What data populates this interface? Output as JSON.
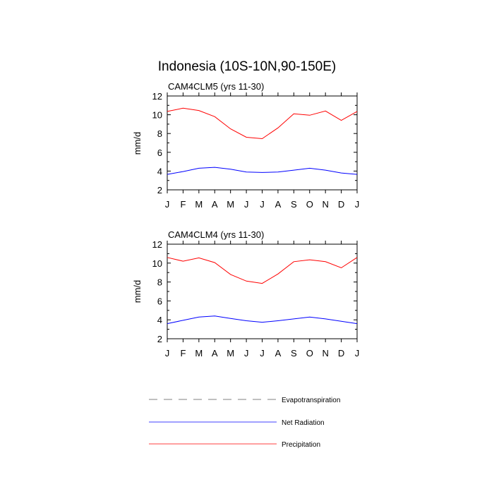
{
  "title": "Indonesia (10S-10N,90-150E)",
  "chart_data": [
    {
      "type": "line",
      "subtitle": "CAM4CLM5 (yrs 11-30)",
      "ylabel": "mm/d",
      "ylim": [
        2,
        12
      ],
      "yticks": [
        "2",
        "4",
        "6",
        "8",
        "10",
        "12"
      ],
      "categories": [
        "J",
        "F",
        "M",
        "A",
        "M",
        "J",
        "J",
        "A",
        "S",
        "O",
        "N",
        "D",
        "J"
      ],
      "series": [
        {
          "name": "Precipitation",
          "color": "#ff0000",
          "values": [
            10.35,
            10.7,
            10.45,
            9.8,
            8.5,
            7.6,
            7.45,
            8.6,
            10.1,
            9.95,
            10.4,
            9.4,
            10.35
          ]
        },
        {
          "name": "Net Radiation",
          "color": "#0000ff",
          "values": [
            3.65,
            3.95,
            4.3,
            4.4,
            4.2,
            3.9,
            3.85,
            3.9,
            4.1,
            4.3,
            4.1,
            3.8,
            3.65
          ]
        }
      ]
    },
    {
      "type": "line",
      "subtitle": "CAM4CLM4 (yrs 11-30)",
      "ylabel": "mm/d",
      "ylim": [
        2,
        12
      ],
      "yticks": [
        "2",
        "4",
        "6",
        "8",
        "10",
        "12"
      ],
      "categories": [
        "J",
        "F",
        "M",
        "A",
        "M",
        "J",
        "J",
        "A",
        "S",
        "O",
        "N",
        "D",
        "J"
      ],
      "series": [
        {
          "name": "Precipitation",
          "color": "#ff0000",
          "values": [
            10.6,
            10.2,
            10.55,
            10.05,
            8.8,
            8.1,
            7.85,
            8.85,
            10.15,
            10.35,
            10.15,
            9.5,
            10.6
          ]
        },
        {
          "name": "Net Radiation",
          "color": "#0000ff",
          "values": [
            3.6,
            3.95,
            4.3,
            4.4,
            4.15,
            3.9,
            3.75,
            3.9,
            4.1,
            4.3,
            4.1,
            3.85,
            3.6
          ]
        }
      ]
    }
  ],
  "legend": [
    {
      "label": "Evapotranspiration",
      "color": "#9a9a9a",
      "style": "dashed"
    },
    {
      "label": "Net Radiation",
      "color": "#0000ff",
      "style": "solid"
    },
    {
      "label": "Precipitation",
      "color": "#ff0000",
      "style": "solid"
    }
  ]
}
